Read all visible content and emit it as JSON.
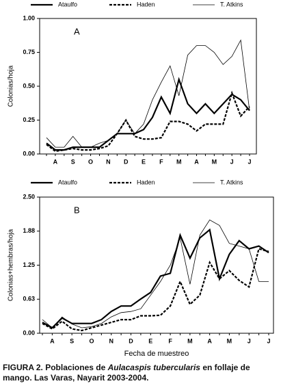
{
  "chart_data": [
    {
      "type": "line",
      "annotation": "A",
      "ylabel": "Colonias/hoja",
      "categories": [
        null,
        "A",
        null,
        "S",
        null,
        "O",
        null,
        "N",
        null,
        "D",
        null,
        "E",
        null,
        "F",
        null,
        "M",
        null,
        "A",
        null,
        "M",
        null,
        "J",
        null,
        "J"
      ],
      "series": [
        {
          "name": "Ataulfo",
          "color": "#000000",
          "line_style": "thick",
          "values": [
            0.08,
            0.03,
            0.03,
            0.05,
            0.05,
            0.05,
            0.05,
            0.1,
            0.15,
            0.15,
            0.15,
            0.18,
            0.27,
            0.42,
            0.3,
            0.55,
            0.37,
            0.3,
            0.37,
            0.3,
            0.37,
            0.44,
            0.4,
            0.32
          ]
        },
        {
          "name": "Haden",
          "color": "#000000",
          "line_style": "dashed",
          "values": [
            0.07,
            0.02,
            0.03,
            0.04,
            0.03,
            0.03,
            0.04,
            0.06,
            0.15,
            0.25,
            0.13,
            0.11,
            0.11,
            0.12,
            0.24,
            0.24,
            0.22,
            0.17,
            0.22,
            0.22,
            0.22,
            0.45,
            0.28,
            0.35
          ]
        },
        {
          "name": "T. Atkins",
          "color": "#000000",
          "line_style": "thin",
          "values": [
            0.12,
            0.05,
            0.05,
            0.13,
            0.05,
            0.05,
            0.08,
            0.1,
            0.15,
            0.25,
            0.15,
            0.22,
            0.4,
            0.53,
            0.65,
            0.43,
            0.73,
            0.8,
            0.8,
            0.75,
            0.66,
            0.72,
            0.84,
            0.32
          ]
        }
      ],
      "ylim": [
        0,
        1
      ],
      "yticks": [
        {
          "value": 0,
          "label": "0.00"
        },
        {
          "value": 0.25,
          "label": "0.25"
        },
        {
          "value": 0.5,
          "label": "0.50"
        },
        {
          "value": 0.75,
          "label": "0.75"
        },
        {
          "value": 1,
          "label": "1.00"
        }
      ]
    },
    {
      "type": "line",
      "annotation": "B",
      "ylabel": "Colonias+hembras/hoja",
      "xlabel": "Fecha de muestreo",
      "categories": [
        null,
        "A",
        null,
        "S",
        null,
        "O",
        null,
        "N",
        null,
        "D",
        null,
        "E",
        null,
        "F",
        null,
        "M",
        null,
        "A",
        null,
        "M",
        null,
        "J",
        null,
        "J"
      ],
      "series": [
        {
          "name": "Ataulfo",
          "color": "#000000",
          "line_style": "thick",
          "values": [
            0.2,
            0.1,
            0.28,
            0.18,
            0.18,
            0.18,
            0.25,
            0.4,
            0.5,
            0.5,
            0.63,
            0.75,
            1.05,
            1.1,
            1.8,
            1.38,
            1.75,
            1.9,
            1.0,
            1.45,
            1.7,
            1.55,
            1.6,
            1.48
          ]
        },
        {
          "name": "Haden",
          "color": "#000000",
          "line_style": "dashed",
          "values": [
            0.18,
            0.08,
            0.22,
            0.08,
            0.05,
            0.1,
            0.15,
            0.2,
            0.25,
            0.25,
            0.32,
            0.32,
            0.33,
            0.5,
            0.95,
            0.53,
            0.7,
            1.3,
            1.0,
            1.15,
            0.97,
            0.85,
            1.55,
            1.5
          ]
        },
        {
          "name": "T. Atkins",
          "color": "#000000",
          "line_style": "thin",
          "values": [
            0.25,
            0.1,
            0.3,
            0.17,
            0.1,
            0.12,
            0.18,
            0.3,
            0.38,
            0.4,
            0.45,
            0.7,
            0.95,
            1.25,
            1.75,
            0.9,
            1.8,
            2.08,
            1.98,
            1.65,
            1.6,
            1.55,
            0.95,
            0.95
          ]
        }
      ],
      "ylim": [
        0,
        2.5
      ],
      "yticks": [
        {
          "value": 0,
          "label": "0.00"
        },
        {
          "value": 0.625,
          "label": "0.63"
        },
        {
          "value": 1.25,
          "label": "1.25"
        },
        {
          "value": 1.875,
          "label": "1.88"
        },
        {
          "value": 2.5,
          "label": "2.50"
        }
      ]
    }
  ],
  "caption": [
    "FIGURA 2. Poblaciones de ",
    "Aulacaspis tubercularis",
    " en follaje de mango. Las Varas, Nayarit 2003-2004."
  ]
}
